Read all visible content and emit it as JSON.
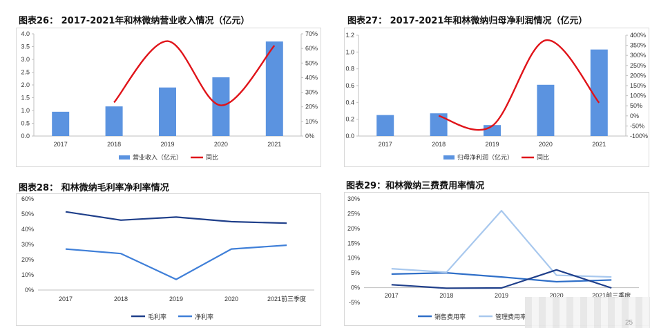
{
  "charts": [
    {
      "title": "图表26：  2017-2021年和林微纳营业收入情况（亿元）",
      "chart_data": {
        "type": "bar+line",
        "categories": [
          "2017",
          "2018",
          "2019",
          "2020",
          "2021"
        ],
        "series": [
          {
            "name": "营业收入（亿元）",
            "kind": "bar",
            "axis": "left",
            "values": [
              0.95,
              1.16,
              1.9,
              2.3,
              3.7
            ]
          },
          {
            "name": "同比",
            "kind": "line",
            "axis": "right",
            "values": [
              null,
              23,
              65,
              21,
              62
            ]
          }
        ],
        "yticks_left": [
          "0.0",
          "0.5",
          "1.0",
          "1.5",
          "2.0",
          "2.5",
          "3.0",
          "3.5",
          "4.0"
        ],
        "yticks_right": [
          "0%",
          "10%",
          "20%",
          "30%",
          "40%",
          "50%",
          "60%",
          "70%"
        ],
        "ylim_left": [
          0,
          4
        ],
        "ylim_right": [
          0,
          70
        ],
        "legend": "bottom"
      }
    },
    {
      "title": "图表27：  2017-2021年和林微纳归母净利润情况（亿元）",
      "chart_data": {
        "type": "bar+line",
        "categories": [
          "2017",
          "2018",
          "2019",
          "2020",
          "2021"
        ],
        "series": [
          {
            "name": "归母净利润（亿元）",
            "kind": "bar",
            "axis": "left",
            "values": [
              0.25,
              0.27,
              0.13,
              0.61,
              1.03
            ]
          },
          {
            "name": "同比",
            "kind": "line",
            "axis": "right",
            "values": [
              null,
              0,
              -50,
              375,
              65
            ]
          }
        ],
        "yticks_left": [
          "0.0",
          "0.2",
          "0.4",
          "0.6",
          "0.8",
          "1.0",
          "1.2"
        ],
        "yticks_right": [
          "-100%",
          "-50%",
          "0%",
          "50%",
          "100%",
          "150%",
          "200%",
          "250%",
          "300%",
          "350%",
          "400%"
        ],
        "ylim_left": [
          0,
          1.2
        ],
        "ylim_right": [
          -100,
          400
        ],
        "legend": "bottom"
      }
    },
    {
      "title": "图表28：  和林微纳毛利率净利率情况",
      "chart_data": {
        "type": "line",
        "categories": [
          "2017",
          "2018",
          "2019",
          "2020",
          "2021前三季度"
        ],
        "series": [
          {
            "name": "毛利率",
            "values": [
              51.5,
              46,
              48,
              45,
              44
            ],
            "color": "#1f3f8a"
          },
          {
            "name": "净利率",
            "values": [
              27,
              24,
              7,
              27,
              29.5
            ],
            "color": "#3f7fd8"
          }
        ],
        "yticks": [
          "0%",
          "10%",
          "20%",
          "30%",
          "40%",
          "50%",
          "60%"
        ],
        "ylim": [
          0,
          60
        ],
        "legend": "bottom"
      }
    },
    {
      "title": "图表29：和林微纳三费费用率情况",
      "chart_data": {
        "type": "line",
        "categories": [
          "2017",
          "2018",
          "2019",
          "2020",
          "2021前三季度"
        ],
        "series": [
          {
            "name": "销售费用率",
            "values": [
              4.6,
              5,
              3.6,
              2,
              2.6
            ],
            "color": "#2f6fc8"
          },
          {
            "name": "管理费用率",
            "values": [
              6.4,
              5.2,
              26,
              4.2,
              3.6
            ],
            "color": "#a8c8ee"
          },
          {
            "name": "",
            "values": [
              1,
              -0.2,
              -0.1,
              6,
              -0.1
            ],
            "color": "#1f3f8a"
          }
        ],
        "yticks": [
          "-5%",
          "0%",
          "5%",
          "10%",
          "15%",
          "20%",
          "25%",
          "30%"
        ],
        "ylim": [
          -5,
          30
        ],
        "legend": "bottom"
      }
    }
  ],
  "page_number": "25"
}
